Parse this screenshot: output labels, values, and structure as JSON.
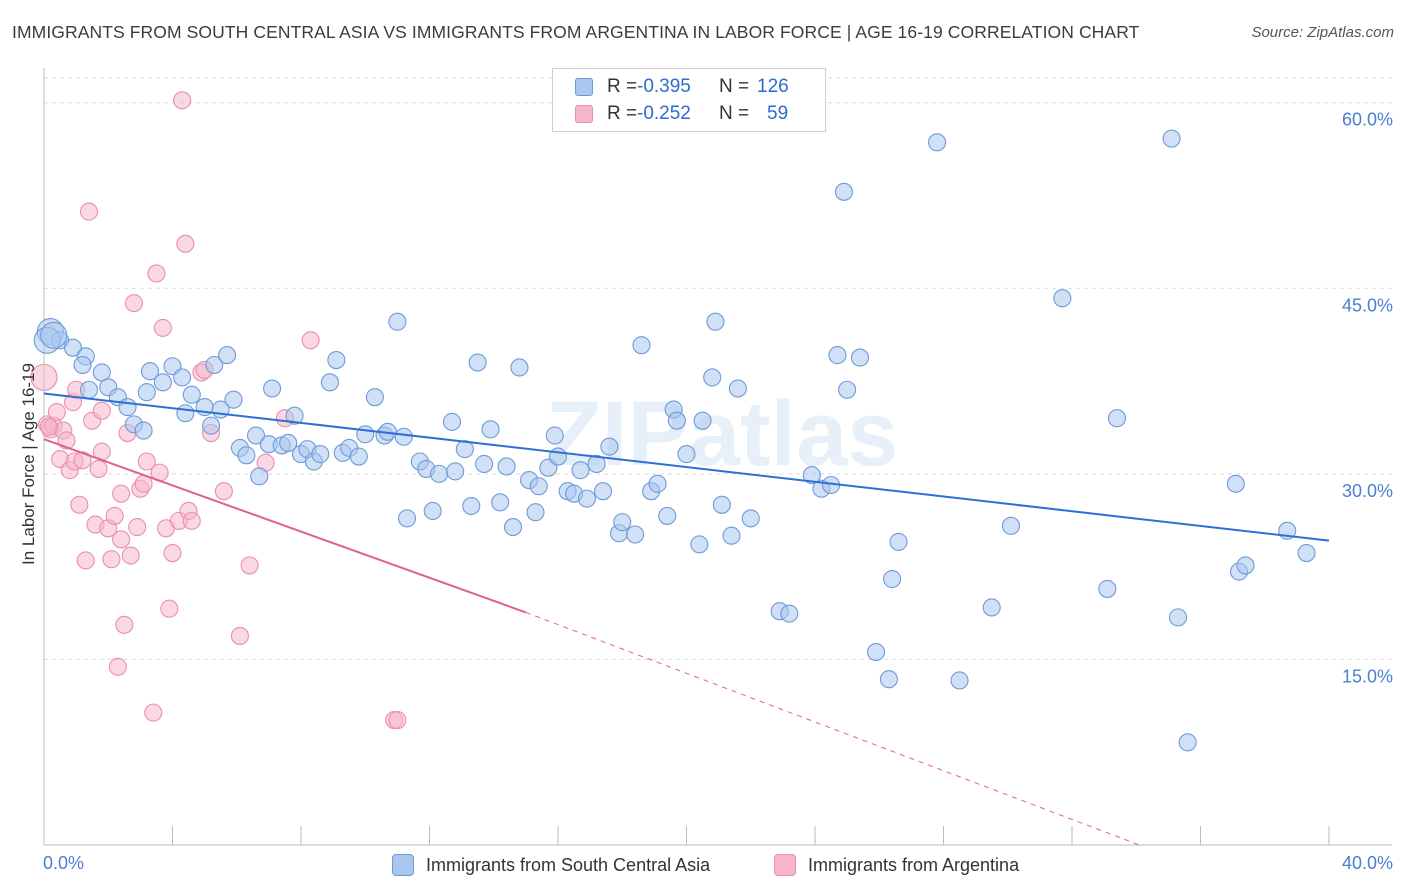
{
  "header": {
    "title": "IMMIGRANTS FROM SOUTH CENTRAL ASIA VS IMMIGRANTS FROM ARGENTINA IN LABOR FORCE | AGE 16-19 CORRELATION CHART",
    "source": "Source: ZipAtlas.com"
  },
  "legend": {
    "blue": {
      "r_label": "R =",
      "r_value": "-0.395",
      "n_label": "N =",
      "n_value": "126"
    },
    "pink": {
      "r_label": "R =",
      "r_value": "-0.252",
      "n_label": "N =",
      "n_value": "59"
    }
  },
  "bottom_legend": {
    "blue": "Immigrants from South Central Asia",
    "pink": "Immigrants from Argentina"
  },
  "watermark": "ZIPatlas",
  "colors": {
    "blue_fill": "#a9c6ee",
    "blue_stroke": "#6f9ad8",
    "blue_line": "#2c6fd6",
    "pink_fill": "#f5b6cb",
    "pink_stroke": "#e890ae",
    "pink_line": "#e0608c",
    "grid": "#d9d9d9",
    "tick_text": "#4a7fd0"
  },
  "chart_data": {
    "type": "scatter",
    "title": "IMMIGRANTS FROM SOUTH CENTRAL ASIA VS IMMIGRANTS FROM ARGENTINA IN LABOR FORCE | AGE 16-19 CORRELATION CHART",
    "xlabel": "",
    "ylabel": "In Labor Force | Age 16-19",
    "xlim": [
      0,
      40
    ],
    "ylim": [
      0,
      62
    ],
    "x_tick_labels": [
      "0.0%",
      "40.0%"
    ],
    "y_ticks": [
      15,
      30,
      45,
      60
    ],
    "y_tick_labels": [
      "15.0%",
      "30.0%",
      "45.0%",
      "60.0%"
    ],
    "grid": true,
    "legend_position": "top-center",
    "series": [
      {
        "name": "Immigrants from South Central Asia",
        "color": "blue",
        "R": -0.395,
        "N": 126,
        "trend": {
          "x": [
            0,
            40
          ],
          "y": [
            36.5,
            24.6
          ],
          "dashed_to": null
        },
        "points": [
          [
            0.2,
            41.5
          ],
          [
            0.5,
            40.8
          ],
          [
            0.9,
            40.2
          ],
          [
            1.3,
            39.5
          ],
          [
            1.2,
            38.8
          ],
          [
            1.8,
            38.2
          ],
          [
            1.4,
            36.8
          ],
          [
            2.0,
            37.0
          ],
          [
            2.3,
            36.2
          ],
          [
            2.6,
            35.4
          ],
          [
            2.8,
            34.0
          ],
          [
            3.1,
            33.5
          ],
          [
            3.2,
            36.6
          ],
          [
            3.3,
            38.3
          ],
          [
            3.7,
            37.4
          ],
          [
            4.0,
            38.7
          ],
          [
            4.3,
            37.8
          ],
          [
            4.4,
            34.9
          ],
          [
            4.6,
            36.4
          ],
          [
            5.0,
            35.4
          ],
          [
            5.2,
            33.9
          ],
          [
            5.3,
            38.8
          ],
          [
            5.5,
            35.2
          ],
          [
            5.7,
            39.6
          ],
          [
            5.9,
            36.0
          ],
          [
            6.1,
            32.1
          ],
          [
            6.3,
            31.5
          ],
          [
            6.6,
            33.1
          ],
          [
            6.7,
            29.8
          ],
          [
            7.0,
            32.4
          ],
          [
            7.1,
            36.9
          ],
          [
            7.4,
            32.3
          ],
          [
            7.6,
            32.5
          ],
          [
            7.8,
            34.7
          ],
          [
            8.0,
            31.6
          ],
          [
            8.2,
            32.0
          ],
          [
            8.4,
            31.0
          ],
          [
            8.6,
            31.6
          ],
          [
            8.9,
            37.4
          ],
          [
            9.1,
            39.2
          ],
          [
            9.3,
            31.7
          ],
          [
            9.5,
            32.1
          ],
          [
            9.8,
            31.4
          ],
          [
            10.0,
            33.2
          ],
          [
            10.3,
            36.2
          ],
          [
            10.6,
            33.1
          ],
          [
            10.7,
            33.4
          ],
          [
            11.0,
            42.3
          ],
          [
            11.3,
            26.4
          ],
          [
            11.2,
            33.0
          ],
          [
            11.7,
            31.0
          ],
          [
            11.9,
            30.4
          ],
          [
            12.1,
            27.0
          ],
          [
            12.3,
            30.0
          ],
          [
            12.7,
            34.2
          ],
          [
            12.8,
            30.2
          ],
          [
            13.1,
            32.0
          ],
          [
            13.3,
            27.4
          ],
          [
            13.5,
            39.0
          ],
          [
            13.7,
            30.8
          ],
          [
            13.9,
            33.6
          ],
          [
            14.2,
            27.7
          ],
          [
            14.4,
            30.6
          ],
          [
            14.6,
            25.7
          ],
          [
            14.8,
            38.6
          ],
          [
            15.1,
            29.5
          ],
          [
            15.3,
            26.9
          ],
          [
            15.4,
            29.0
          ],
          [
            15.7,
            30.5
          ],
          [
            15.9,
            33.1
          ],
          [
            16.0,
            31.4
          ],
          [
            16.3,
            28.6
          ],
          [
            16.5,
            28.4
          ],
          [
            16.7,
            30.3
          ],
          [
            16.9,
            28.0
          ],
          [
            17.2,
            30.8
          ],
          [
            17.4,
            28.6
          ],
          [
            17.6,
            32.2
          ],
          [
            17.9,
            25.2
          ],
          [
            18.0,
            26.1
          ],
          [
            18.4,
            25.1
          ],
          [
            18.6,
            40.4
          ],
          [
            18.9,
            28.6
          ],
          [
            19.1,
            29.2
          ],
          [
            19.4,
            26.6
          ],
          [
            19.6,
            35.2
          ],
          [
            19.7,
            34.3
          ],
          [
            20.0,
            31.6
          ],
          [
            20.4,
            24.3
          ],
          [
            20.5,
            34.3
          ],
          [
            20.8,
            37.8
          ],
          [
            20.9,
            42.3
          ],
          [
            21.1,
            27.5
          ],
          [
            21.4,
            25.0
          ],
          [
            21.6,
            36.9
          ],
          [
            22.0,
            26.4
          ],
          [
            22.9,
            18.9
          ],
          [
            23.2,
            18.7
          ],
          [
            23.9,
            29.9
          ],
          [
            24.2,
            28.8
          ],
          [
            24.5,
            29.1
          ],
          [
            24.7,
            39.6
          ],
          [
            24.9,
            52.8
          ],
          [
            25.0,
            36.8
          ],
          [
            25.4,
            39.4
          ],
          [
            25.9,
            15.6
          ],
          [
            26.3,
            13.4
          ],
          [
            26.6,
            24.5
          ],
          [
            26.4,
            21.5
          ],
          [
            27.8,
            56.8
          ],
          [
            28.5,
            13.3
          ],
          [
            29.5,
            19.2
          ],
          [
            30.1,
            25.8
          ],
          [
            31.7,
            44.2
          ],
          [
            33.1,
            20.7
          ],
          [
            33.4,
            34.5
          ],
          [
            35.1,
            57.1
          ],
          [
            35.3,
            18.4
          ],
          [
            35.6,
            8.3
          ],
          [
            37.1,
            29.2
          ],
          [
            37.2,
            22.1
          ],
          [
            37.4,
            22.6
          ],
          [
            38.7,
            25.4
          ],
          [
            39.3,
            23.6
          ],
          [
            0.1,
            40.8
          ],
          [
            0.3,
            41.2
          ]
        ]
      },
      {
        "name": "Immigrants from Argentina",
        "color": "pink",
        "R": -0.252,
        "N": 59,
        "trend": {
          "x": [
            0,
            15.0
          ],
          "y": [
            32.8,
            18.8
          ],
          "dashed_to": {
            "x": 34.1,
            "y": 0
          }
        },
        "points": [
          [
            0.0,
            37.8
          ],
          [
            0.1,
            34.0
          ],
          [
            0.2,
            33.6
          ],
          [
            0.3,
            33.9
          ],
          [
            0.4,
            35.0
          ],
          [
            0.5,
            31.2
          ],
          [
            0.6,
            33.5
          ],
          [
            0.7,
            32.7
          ],
          [
            0.8,
            30.3
          ],
          [
            0.9,
            35.8
          ],
          [
            0.95,
            31.0
          ],
          [
            1.0,
            36.8
          ],
          [
            1.1,
            27.5
          ],
          [
            1.2,
            31.1
          ],
          [
            1.3,
            23.0
          ],
          [
            1.4,
            51.2
          ],
          [
            1.5,
            34.3
          ],
          [
            1.6,
            25.9
          ],
          [
            1.7,
            30.4
          ],
          [
            1.8,
            31.8
          ],
          [
            1.8,
            35.1
          ],
          [
            2.0,
            25.6
          ],
          [
            2.1,
            23.1
          ],
          [
            2.2,
            26.6
          ],
          [
            2.3,
            14.4
          ],
          [
            2.4,
            24.7
          ],
          [
            2.4,
            28.4
          ],
          [
            2.5,
            17.8
          ],
          [
            2.6,
            33.3
          ],
          [
            2.7,
            23.4
          ],
          [
            2.8,
            43.8
          ],
          [
            2.9,
            25.7
          ],
          [
            3.0,
            28.8
          ],
          [
            3.1,
            29.2
          ],
          [
            3.2,
            31.0
          ],
          [
            3.4,
            10.7
          ],
          [
            3.5,
            46.2
          ],
          [
            3.6,
            30.1
          ],
          [
            3.7,
            41.8
          ],
          [
            3.8,
            25.6
          ],
          [
            3.9,
            19.1
          ],
          [
            4.0,
            23.6
          ],
          [
            4.2,
            26.2
          ],
          [
            4.4,
            48.6
          ],
          [
            4.5,
            27.0
          ],
          [
            4.6,
            26.2
          ],
          [
            4.9,
            38.2
          ],
          [
            5.0,
            38.4
          ],
          [
            5.2,
            33.3
          ],
          [
            5.6,
            28.6
          ],
          [
            6.1,
            16.9
          ],
          [
            6.4,
            22.6
          ],
          [
            6.9,
            30.9
          ],
          [
            7.5,
            34.5
          ],
          [
            8.3,
            40.8
          ],
          [
            10.9,
            10.1
          ],
          [
            11.0,
            10.1
          ],
          [
            4.3,
            60.2
          ],
          [
            0.15,
            33.8
          ]
        ]
      }
    ]
  }
}
